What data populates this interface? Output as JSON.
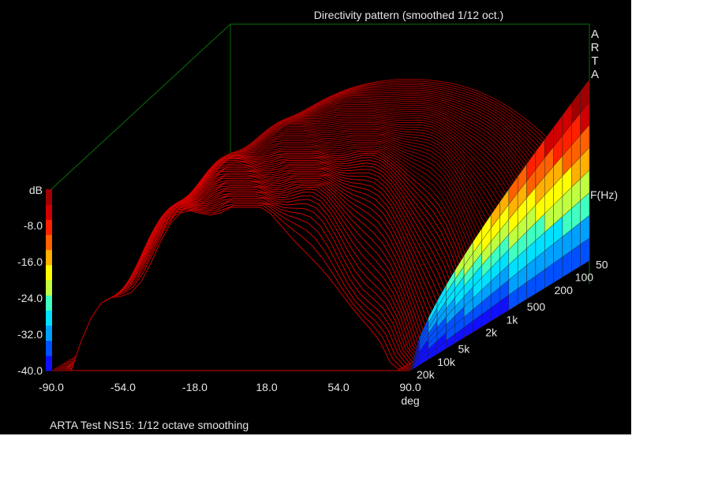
{
  "chart_data": {
    "type": "waterfall-3d",
    "title": "Directivity pattern (smoothed 1/12 oct.)",
    "watermark": "A R T A",
    "footer": "ARTA Test NS15: 1/12 octave smoothing",
    "x_axis": {
      "unit": "deg",
      "range": [
        -90,
        90
      ],
      "ticks": [
        "-90.0",
        "-54.0",
        "-18.0",
        "18.0",
        "54.0",
        "90.0"
      ]
    },
    "z_axis": {
      "unit": "dB",
      "range": [
        -40,
        0
      ],
      "ticks": [
        "-8.0",
        "-16.0",
        "-24.0",
        "-32.0",
        "-40.0"
      ]
    },
    "freq_axis": {
      "unit": "F(Hz)",
      "range": [
        50,
        20000
      ],
      "scale": "log",
      "ticks": [
        "50",
        "100",
        "200",
        "500",
        "1k",
        "2k",
        "5k",
        "10k",
        "20k"
      ]
    },
    "color_scale": [
      "#1010ff",
      "#0050ff",
      "#00a0ff",
      "#00e0ff",
      "#40ffc0",
      "#c0ff40",
      "#ffff00",
      "#ffb000",
      "#ff6000",
      "#ff2000",
      "#d00000",
      "#a00000"
    ],
    "plane_color": "#0a6e0a",
    "description_of_series": {
      "angle_step_deg": 5,
      "curve_count": 72,
      "model": "dB(angle,f) = -40 dB floor at +/-90 deg for all f; near 0 dB on-axis; beaming narrows with rising frequency"
    }
  }
}
